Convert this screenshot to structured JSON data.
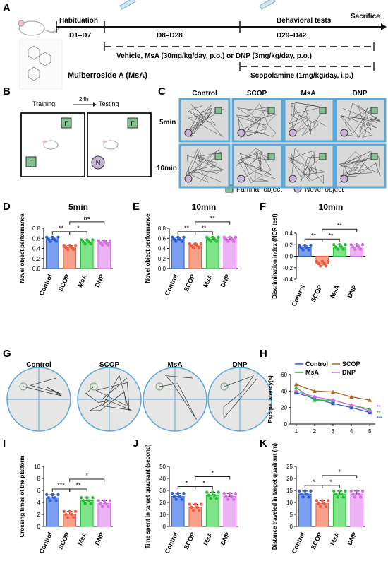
{
  "colors": {
    "control": "#2e5fd6",
    "scop": "#f05a3c",
    "msa": "#22c032",
    "dnp": "#d96ae8",
    "arena": "#5aa8d8",
    "stroke": "#555555"
  },
  "panels": {
    "A": "A",
    "B": "B",
    "C": "C",
    "D": "D",
    "E": "E",
    "F": "F",
    "G": "G",
    "H": "H",
    "I": "I",
    "J": "J",
    "K": "K"
  },
  "timeline": {
    "habituation": "Habituation",
    "behavioral": "Behavioral tests",
    "sacrifice": "Sacrifice",
    "seg1": "D1–D7",
    "seg2": "D8–D28",
    "seg3": "D29–D42",
    "vehicle": "Vehicle, MsA (30mg/kg/day, p.o.) or DNP (3mg/kg/day, p.o.)",
    "scop": "Scopolamine (1mg/kg/day, i.p.)",
    "compound": "Mulberroside A (MsA)"
  },
  "nor": {
    "training": "Training",
    "testing": "Testing",
    "gap": "24h",
    "f": "F",
    "n": "N"
  },
  "grid": {
    "cols": [
      "Control",
      "SCOP",
      "MsA",
      "DNP"
    ],
    "rows": [
      "5min",
      "10min"
    ],
    "legend_familiar": "Familiar object",
    "legend_novel": "Novel object"
  },
  "groups": [
    "Control",
    "SCOP",
    "MsA",
    "DNP"
  ],
  "charts": [
    {
      "id": "D",
      "type": "bar",
      "title": "5min",
      "ylabel": "Novel object performance",
      "ylim": [
        0,
        0.8
      ],
      "ticks": [
        "0.0",
        "0.2",
        "0.4",
        "0.6",
        "0.8"
      ],
      "values": [
        0.58,
        0.42,
        0.53,
        0.51
      ],
      "sigs": [
        "**",
        "*",
        "ns"
      ]
    },
    {
      "id": "E",
      "type": "bar",
      "title": "10min",
      "ylabel": "Novel object performance",
      "ylim": [
        0,
        0.8
      ],
      "ticks": [
        "0.0",
        "0.2",
        "0.4",
        "0.6",
        "0.8"
      ],
      "values": [
        0.58,
        0.45,
        0.58,
        0.58
      ],
      "sigs": [
        "**",
        "**",
        "**"
      ]
    },
    {
      "id": "F",
      "type": "bar",
      "title": "10min",
      "ylabel": "Discrimination index (NOR test)",
      "ylim": [
        -0.4,
        0.4
      ],
      "ticks": [
        "-0.4",
        "-0.2",
        "0.0",
        "0.2",
        "0.4"
      ],
      "values": [
        0.15,
        -0.13,
        0.16,
        0.16
      ],
      "sigs": [
        "**",
        "**",
        "**"
      ]
    },
    {
      "id": "I",
      "type": "bar",
      "title": "",
      "ylabel": "Crossing times of the platform",
      "ylim": [
        0,
        10
      ],
      "ticks": [
        "0",
        "2",
        "4",
        "6",
        "8",
        "10"
      ],
      "values": [
        4.8,
        2.0,
        4.3,
        3.8
      ],
      "sigs": [
        "***",
        "**",
        "*"
      ]
    },
    {
      "id": "J",
      "type": "bar",
      "title": "",
      "ylabel": "Time spent in target quadrant (second)",
      "ylim": [
        0,
        50
      ],
      "ticks": [
        "0",
        "10",
        "20",
        "30",
        "40",
        "50"
      ],
      "values": [
        25,
        16,
        26,
        25
      ],
      "sigs": [
        "*",
        "*",
        "*"
      ]
    },
    {
      "id": "K",
      "type": "bar",
      "title": "",
      "ylabel": "Distance traveled in target quadrant (m)",
      "ylim": [
        0,
        25
      ],
      "ticks": [
        "0",
        "5",
        "10",
        "15",
        "20",
        "25"
      ],
      "values": [
        13.5,
        9.5,
        13.5,
        13.5
      ],
      "sigs": [
        "*",
        "*",
        "*"
      ]
    }
  ],
  "chart_data": {
    "type": "line",
    "ylabel": "Escape latency(s)",
    "ylim": [
      0,
      60
    ],
    "ticks": [
      "0",
      "20",
      "40",
      "60"
    ],
    "x": [
      1,
      2,
      3,
      4,
      5
    ],
    "series": [
      {
        "name": "Control",
        "values": [
          38,
          31,
          25,
          20,
          14
        ]
      },
      {
        "name": "SCOP",
        "values": [
          48,
          40,
          39,
          33,
          29
        ]
      },
      {
        "name": "MsA",
        "values": [
          44,
          29,
          29,
          23,
          18
        ]
      },
      {
        "name": "DNP",
        "values": [
          40,
          33,
          29,
          23,
          16
        ]
      }
    ],
    "sig_marks": [
      "**",
      "**",
      "***"
    ]
  }
}
